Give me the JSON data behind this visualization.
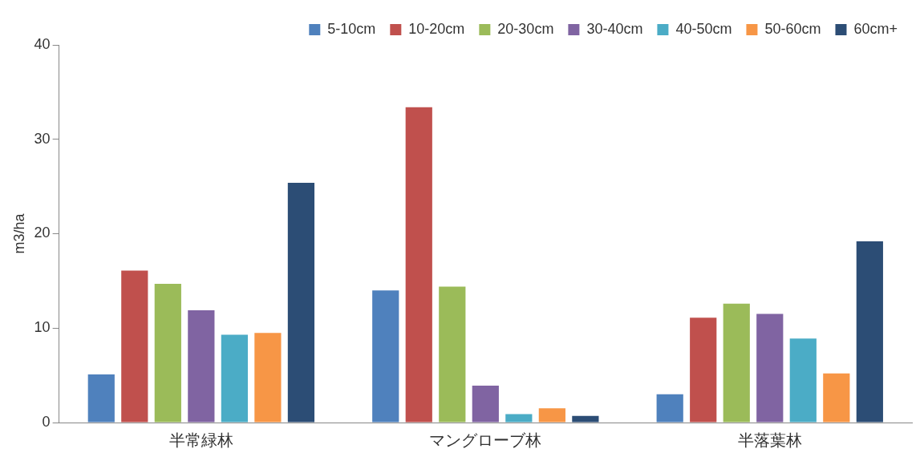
{
  "chart_data": {
    "type": "bar",
    "ylabel": "m3/ha",
    "categories": [
      "半常緑林",
      "マングローブ林",
      "半落葉林"
    ],
    "series": [
      {
        "name": "5-10cm",
        "color": "#4f81bd",
        "values": [
          5.1,
          14.0,
          3.0
        ]
      },
      {
        "name": "10-20cm",
        "color": "#c0504d",
        "values": [
          16.1,
          33.4,
          11.1
        ]
      },
      {
        "name": "20-30cm",
        "color": "#9bbb59",
        "values": [
          14.7,
          14.4,
          12.6
        ]
      },
      {
        "name": "30-40cm",
        "color": "#8064a2",
        "values": [
          11.9,
          3.9,
          11.5
        ]
      },
      {
        "name": "40-50cm",
        "color": "#4bacc6",
        "values": [
          9.3,
          0.9,
          8.9
        ]
      },
      {
        "name": "50-60cm",
        "color": "#f79646",
        "values": [
          9.5,
          1.5,
          5.2
        ]
      },
      {
        "name": "60cm+",
        "color": "#2c4d75",
        "values": [
          25.4,
          0.7,
          19.2
        ]
      }
    ],
    "ylim": [
      0,
      40
    ],
    "yticks": [
      0,
      10,
      20,
      30,
      40
    ],
    "grid": false,
    "legend": "top right"
  }
}
